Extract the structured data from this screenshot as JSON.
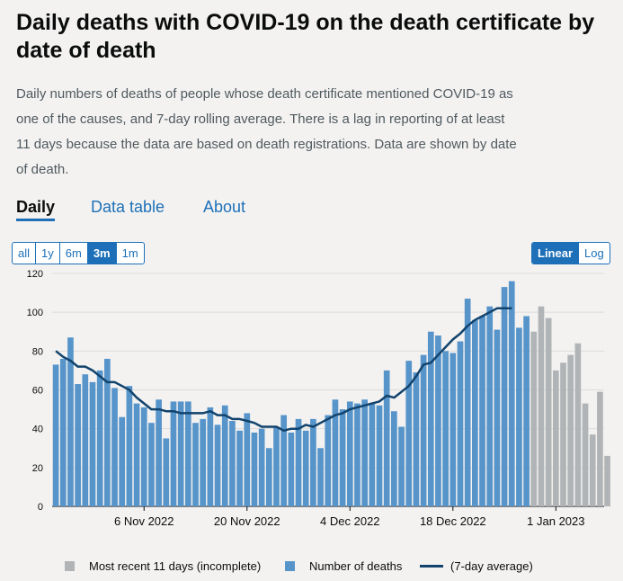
{
  "title": "Daily deaths with COVID-19 on the death certificate by date of death",
  "description": "Daily numbers of deaths of people whose death certificate mentioned COVID-19 as one of the causes, and 7-day rolling average. There is a lag in reporting of at least 11 days because the data are based on death registrations. Data are shown by date of death.",
  "tabs": [
    "Daily",
    "Data table",
    "About"
  ],
  "time_buttons": [
    "all",
    "1y",
    "6m",
    "3m",
    "1m"
  ],
  "time_selected": "3m",
  "scale_buttons": [
    "Linear",
    "Log"
  ],
  "scale_selected": "Linear",
  "colors": {
    "complete": "#5694ca",
    "incomplete": "#b1b4b6",
    "average": "#12436d",
    "accent": "#1d70b8"
  },
  "legend": {
    "incomplete": "Most recent 11 days (incomplete)",
    "complete": "Number of deaths",
    "average": "(7-day average)"
  },
  "chart_data": {
    "type": "bar",
    "start_date": "2022-10-25",
    "x_tick_labels": [
      "6 Nov 2022",
      "20 Nov 2022",
      "4 Dec 2022",
      "18 Dec 2022",
      "1 Jan 2023"
    ],
    "x_tick_dates": [
      "2022-11-06",
      "2022-11-20",
      "2022-12-04",
      "2022-12-18",
      "2023-01-01"
    ],
    "ylim": [
      0,
      120
    ],
    "y_ticks": [
      0,
      20,
      40,
      60,
      80,
      100,
      120
    ],
    "grid": true,
    "legend_position": "bottom",
    "series": [
      {
        "name": "Number of deaths",
        "values": [
          73,
          76,
          87,
          63,
          68,
          64,
          70,
          76,
          61,
          46,
          62,
          53,
          51,
          43,
          55,
          35,
          54,
          54,
          54,
          43,
          45,
          51,
          42,
          52,
          44,
          39,
          48,
          38,
          40,
          30,
          41,
          47,
          38,
          45,
          39,
          45,
          30,
          47,
          55,
          50,
          54,
          53,
          55,
          53,
          52,
          70,
          49,
          41,
          75,
          69,
          78,
          90,
          88,
          80,
          79,
          85,
          107,
          96,
          98,
          103,
          91,
          113,
          116,
          92,
          98
        ],
        "dates_from_start": "consecutive"
      },
      {
        "name": "Most recent 11 days (incomplete)",
        "values": [
          90,
          103,
          97,
          70,
          74,
          78,
          84,
          53,
          37,
          59,
          26
        ]
      },
      {
        "name": "(7-day average)",
        "values": [
          80,
          77,
          75,
          72,
          72,
          70,
          67,
          64,
          64,
          62,
          60,
          56,
          53,
          50,
          50,
          49,
          49,
          48,
          48,
          48,
          48,
          49,
          47,
          47,
          45,
          45,
          44,
          43,
          41,
          41,
          41,
          39,
          40,
          40,
          42,
          41,
          43,
          45,
          47,
          48,
          50,
          51,
          52,
          53,
          54,
          57,
          56,
          59,
          62,
          67,
          73,
          74,
          78,
          82,
          86,
          89,
          93,
          96,
          98,
          100,
          102,
          102,
          102
        ]
      }
    ]
  }
}
